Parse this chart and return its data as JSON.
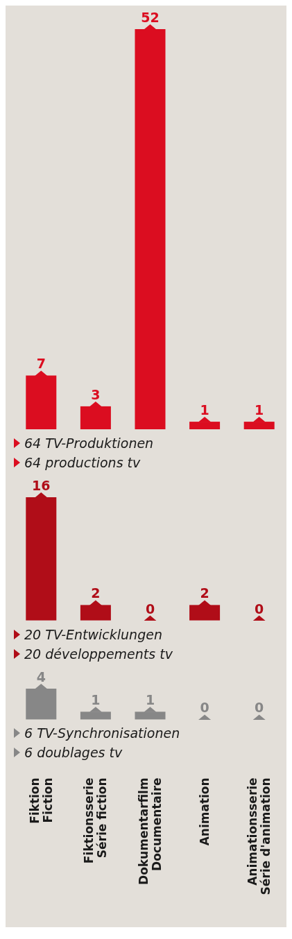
{
  "chart_data": [
    {
      "type": "bar",
      "categories": [
        null,
        null,
        null,
        null,
        null
      ],
      "values": [
        7,
        3,
        52,
        1,
        1
      ],
      "color": "#db0d20",
      "data_labels": true,
      "tick_labels": false,
      "annotations": [
        "64 TV-Produktionen",
        "64 productions tv"
      ]
    },
    {
      "type": "bar",
      "categories": [
        null,
        null,
        null,
        null,
        null
      ],
      "values": [
        16,
        2,
        0,
        2,
        0
      ],
      "color": "#b00d18",
      "data_labels": true,
      "tick_labels": false,
      "annotations": [
        "20 TV-Entwicklungen",
        "20 développements tv"
      ]
    },
    {
      "type": "bar",
      "categories": [
        "Fiktion\nFiction",
        "Fiktionsserie\nSérie fiction",
        "Dokumentarfilm\nDocumentaire",
        "Animation",
        "Animationsserie\nSérie d'animation"
      ],
      "values": [
        4,
        1,
        1,
        0,
        0
      ],
      "color": "#878787",
      "data_labels": true,
      "tick_labels": "x",
      "annotations": [
        "6 TV-Synchronisationen",
        "6 doublages tv"
      ]
    }
  ]
}
